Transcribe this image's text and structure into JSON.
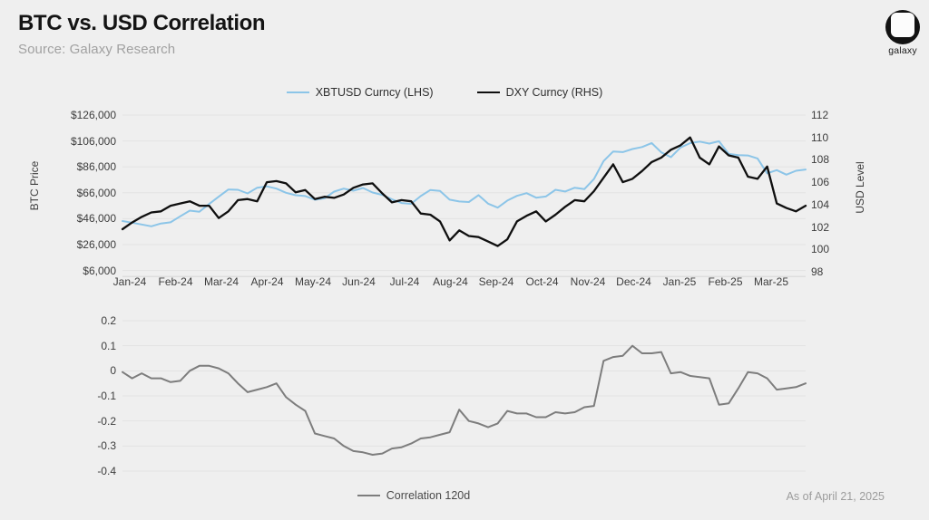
{
  "page": {
    "title": "BTC vs. USD Correlation",
    "source": "Source: Galaxy Research",
    "as_of": "As of April 21, 2025"
  },
  "logo": {
    "label": "galaxy"
  },
  "colors": {
    "background": "#efefef",
    "btc_line": "#8cc5e8",
    "dxy_line": "#0f0f0f",
    "correlation_line": "#7d7d7d",
    "grid": "#e3e3e3",
    "axis_line": "#d8d8d8",
    "tick_text": "#3c3c3c",
    "muted_text": "#9c9c9c"
  },
  "chart_data": [
    {
      "type": "line",
      "title": "BTC price vs DXY",
      "legend_position": "top-center",
      "grid": true,
      "x_tick_labels": [
        "Jan-24",
        "Feb-24",
        "Mar-24",
        "Apr-24",
        "May-24",
        "Jun-24",
        "Jul-24",
        "Aug-24",
        "Sep-24",
        "Oct-24",
        "Nov-24",
        "Dec-24",
        "Jan-25",
        "Feb-25",
        "Mar-25"
      ],
      "y_left": {
        "label": "BTC Price",
        "range": [
          6000,
          126000
        ],
        "ticks": [
          {
            "label": "$126,000",
            "value": 126000
          },
          {
            "label": "$106,000",
            "value": 106000
          },
          {
            "label": "$86,000",
            "value": 86000
          },
          {
            "label": "$66,000",
            "value": 66000
          },
          {
            "label": "$46,000",
            "value": 46000
          },
          {
            "label": "$26,000",
            "value": 26000
          },
          {
            "label": "$6,000",
            "value": 6000
          }
        ]
      },
      "y_right": {
        "label": "USD Level",
        "range": [
          98,
          112
        ],
        "ticks": [
          {
            "label": "112",
            "value": 112
          },
          {
            "label": "110",
            "value": 110
          },
          {
            "label": "108",
            "value": 108
          },
          {
            "label": "106",
            "value": 106
          },
          {
            "label": "104",
            "value": 104
          },
          {
            "label": "102",
            "value": 102
          },
          {
            "label": "100",
            "value": 100
          },
          {
            "label": "98",
            "value": 98
          }
        ]
      },
      "series": [
        {
          "name": "XBTUSD Curncy (LHS)",
          "axis": "left",
          "color_key": "btc_line",
          "values": [
            44200,
            42900,
            41500,
            40100,
            42300,
            43200,
            47800,
            52200,
            51400,
            57300,
            63000,
            68500,
            68300,
            65500,
            69900,
            71000,
            69200,
            66000,
            64100,
            63500,
            60600,
            61700,
            66900,
            69200,
            67600,
            69700,
            66200,
            64400,
            61000,
            58100,
            57500,
            63500,
            68200,
            67500,
            60700,
            59300,
            58900,
            64200,
            57600,
            54500,
            60000,
            63600,
            65700,
            62200,
            63100,
            68300,
            67000,
            69900,
            68800,
            76600,
            90500,
            97900,
            97400,
            99800,
            101300,
            104400,
            97200,
            93500,
            101000,
            104300,
            105500,
            104000,
            105800,
            96000,
            95000,
            94800,
            92500,
            81000,
            83500,
            80000,
            83000,
            84000
          ]
        },
        {
          "name": "DXY Curncy (RHS)",
          "axis": "right",
          "color_key": "dxy_line",
          "values": [
            101.8,
            102.4,
            102.9,
            103.3,
            103.4,
            103.9,
            104.1,
            104.3,
            103.9,
            103.9,
            102.8,
            103.4,
            104.4,
            104.5,
            104.3,
            106.0,
            106.1,
            105.9,
            105.1,
            105.3,
            104.5,
            104.7,
            104.6,
            104.9,
            105.5,
            105.8,
            105.9,
            105.0,
            104.2,
            104.4,
            104.3,
            103.2,
            103.1,
            102.5,
            100.8,
            101.7,
            101.2,
            101.1,
            100.7,
            100.3,
            100.9,
            102.5,
            103.0,
            103.4,
            102.5,
            103.1,
            103.8,
            104.4,
            104.3,
            105.2,
            106.4,
            107.6,
            106.0,
            106.3,
            107.0,
            107.8,
            108.2,
            108.9,
            109.3,
            110.0,
            108.2,
            107.6,
            109.2,
            108.4,
            108.2,
            106.5,
            106.3,
            107.4,
            104.1,
            103.7,
            103.4,
            103.9
          ]
        }
      ]
    },
    {
      "type": "line",
      "title": "120d correlation of BTC and DXY",
      "legend_position": "bottom-center",
      "grid": true,
      "y": {
        "range": [
          -0.4,
          0.2
        ],
        "ticks": [
          {
            "label": "0.2",
            "value": 0.2
          },
          {
            "label": "0.1",
            "value": 0.1
          },
          {
            "label": "0",
            "value": 0
          },
          {
            "label": "-0.1",
            "value": -0.1
          },
          {
            "label": "-0.2",
            "value": -0.2
          },
          {
            "label": "-0.3",
            "value": -0.3
          },
          {
            "label": "-0.4",
            "value": -0.4
          }
        ]
      },
      "series": [
        {
          "name": "Correlation 120d",
          "color_key": "correlation_line",
          "values": [
            -0.005,
            -0.03,
            -0.01,
            -0.03,
            -0.03,
            -0.045,
            -0.04,
            0.0,
            0.02,
            0.02,
            0.01,
            -0.01,
            -0.05,
            -0.085,
            -0.075,
            -0.065,
            -0.05,
            -0.105,
            -0.135,
            -0.16,
            -0.25,
            -0.26,
            -0.27,
            -0.3,
            -0.32,
            -0.325,
            -0.335,
            -0.33,
            -0.31,
            -0.305,
            -0.29,
            -0.27,
            -0.265,
            -0.255,
            -0.245,
            -0.155,
            -0.2,
            -0.21,
            -0.225,
            -0.21,
            -0.16,
            -0.17,
            -0.17,
            -0.185,
            -0.185,
            -0.165,
            -0.17,
            -0.165,
            -0.145,
            -0.14,
            0.04,
            0.055,
            0.06,
            0.1,
            0.07,
            0.07,
            0.075,
            -0.01,
            -0.005,
            -0.02,
            -0.025,
            -0.03,
            -0.135,
            -0.13,
            -0.07,
            -0.005,
            -0.01,
            -0.03,
            -0.075,
            -0.07,
            -0.065,
            -0.05
          ]
        }
      ]
    }
  ]
}
